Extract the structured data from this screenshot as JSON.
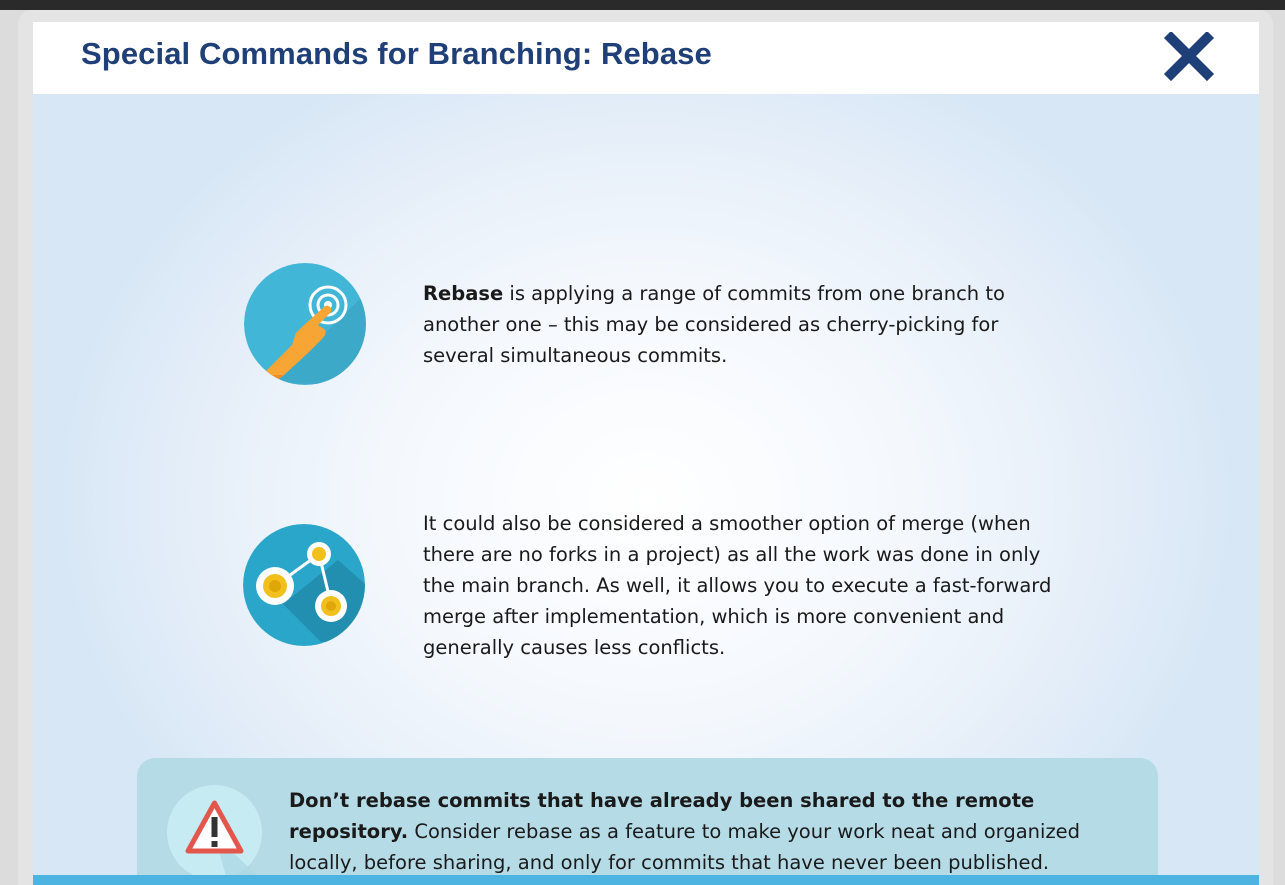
{
  "dialog": {
    "title": "Special Commands for Branching: Rebase",
    "close_icon": "close-icon"
  },
  "items": [
    {
      "icon": "touch-gesture-icon",
      "bold": "Rebase",
      "text": " is applying a range of commits from one branch to another one – this may be considered as cherry-picking for several simultaneous commits."
    },
    {
      "icon": "branch-graph-icon",
      "text": "It could also be considered a smoother option of merge (when there are no forks in a project) as all the work was done in only the main branch. As well, it allows you to execute a fast-forward merge after implementation, which is more convenient and generally causes less conflicts."
    }
  ],
  "warning": {
    "icon": "warning-icon",
    "bold": "Don’t rebase commits that have already been shared to the remote repository.",
    "text": " Consider rebase as a feature to make your work neat and organized locally, before sharing, and only for commits that have never been published."
  },
  "colors": {
    "title": "#1f3f78",
    "close": "#1f3f78",
    "warning_bg": "#b5dbe7",
    "bottom_bar": "#4db3e0"
  }
}
